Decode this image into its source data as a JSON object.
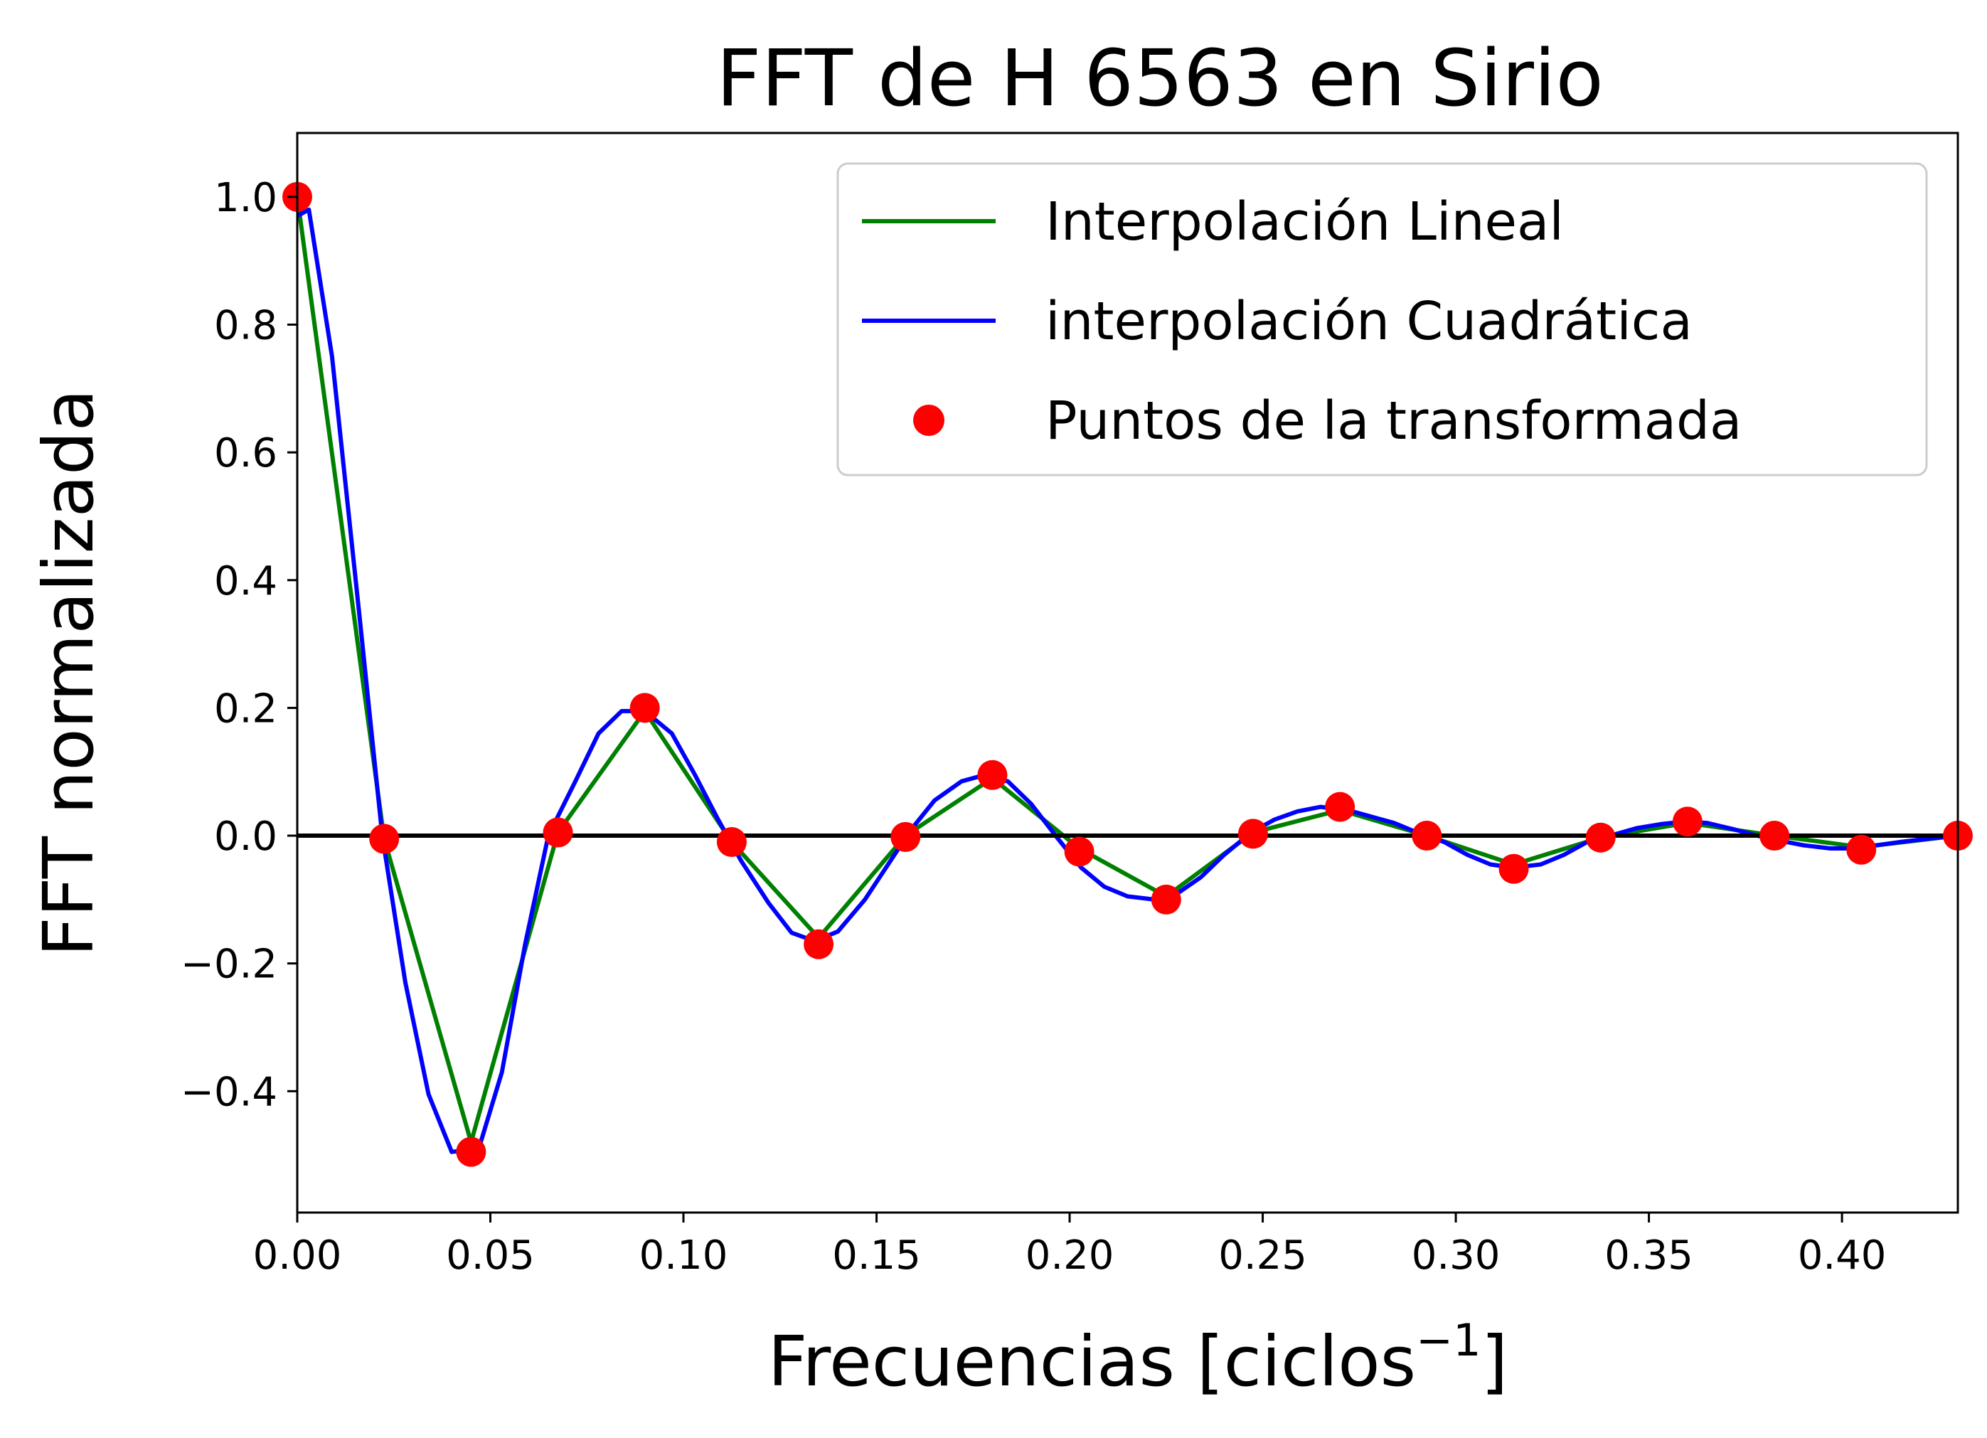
{
  "chart_data": {
    "type": "line",
    "title": "FFT de H 6563 en Sirio",
    "xlabel": "Frecuencias [ciclos",
    "xlabel_superscript": "−1",
    "xlabel_close": "]",
    "ylabel": "FFT normalizada",
    "xlim": [
      0.0,
      0.43
    ],
    "ylim": [
      -0.59,
      1.1
    ],
    "xticks": [
      0.0,
      0.05,
      0.1,
      0.15,
      0.2,
      0.25,
      0.3,
      0.35,
      0.4
    ],
    "xtick_labels": [
      "0.00",
      "0.05",
      "0.10",
      "0.15",
      "0.20",
      "0.25",
      "0.30",
      "0.35",
      "0.40"
    ],
    "yticks": [
      -0.4,
      -0.2,
      0.0,
      0.2,
      0.4,
      0.6,
      0.8,
      1.0
    ],
    "ytick_labels": [
      "−0.4",
      "−0.2",
      "0.0",
      "0.2",
      "0.4",
      "0.6",
      "0.8",
      "1.0"
    ],
    "grid": false,
    "legend_position": "top-right",
    "reference_line": {
      "y": 0.0,
      "color": "#000000"
    },
    "series": [
      {
        "name": "Interpolación Lineal",
        "kind": "line",
        "color": "#008000",
        "x": [
          0.0,
          0.0225,
          0.045,
          0.0675,
          0.09,
          0.1125,
          0.135,
          0.1575,
          0.18,
          0.2025,
          0.225,
          0.2475,
          0.27,
          0.2925,
          0.315,
          0.3375,
          0.36,
          0.3825,
          0.405,
          0.43
        ],
        "y": [
          1.0,
          -0.005,
          -0.48,
          0.005,
          0.195,
          -0.01,
          -0.16,
          0.0,
          0.09,
          -0.02,
          -0.095,
          0.005,
          0.04,
          0.0,
          -0.045,
          -0.003,
          0.02,
          0.0,
          -0.018,
          0.0
        ]
      },
      {
        "name": "interpolación Cuadrática",
        "kind": "line",
        "color": "#0000ff",
        "x": [
          0.0,
          0.003,
          0.009,
          0.016,
          0.022,
          0.028,
          0.034,
          0.04,
          0.047,
          0.053,
          0.059,
          0.065,
          0.072,
          0.078,
          0.084,
          0.09,
          0.097,
          0.103,
          0.109,
          0.115,
          0.122,
          0.128,
          0.134,
          0.14,
          0.147,
          0.153,
          0.159,
          0.165,
          0.172,
          0.178,
          0.184,
          0.19,
          0.197,
          0.203,
          0.209,
          0.215,
          0.222,
          0.228,
          0.234,
          0.24,
          0.247,
          0.253,
          0.259,
          0.265,
          0.272,
          0.278,
          0.284,
          0.29,
          0.297,
          0.303,
          0.309,
          0.315,
          0.322,
          0.328,
          0.334,
          0.34,
          0.347,
          0.353,
          0.359,
          0.365,
          0.372,
          0.378,
          0.384,
          0.39,
          0.397,
          0.403,
          0.409,
          0.415,
          0.422,
          0.43
        ],
        "y": [
          0.97,
          0.98,
          0.75,
          0.35,
          0.0,
          -0.23,
          -0.405,
          -0.495,
          -0.49,
          -0.37,
          -0.17,
          0.0,
          0.085,
          0.16,
          0.195,
          0.195,
          0.16,
          0.095,
          0.025,
          -0.04,
          -0.105,
          -0.152,
          -0.165,
          -0.15,
          -0.1,
          -0.045,
          0.01,
          0.055,
          0.085,
          0.095,
          0.085,
          0.05,
          -0.005,
          -0.05,
          -0.08,
          -0.095,
          -0.1,
          -0.09,
          -0.065,
          -0.03,
          0.005,
          0.025,
          0.038,
          0.045,
          0.04,
          0.03,
          0.02,
          0.005,
          -0.01,
          -0.03,
          -0.045,
          -0.05,
          -0.045,
          -0.03,
          -0.01,
          0.0,
          0.012,
          0.018,
          0.022,
          0.02,
          0.01,
          0.0,
          -0.008,
          -0.015,
          -0.02,
          -0.02,
          -0.015,
          -0.01,
          -0.005,
          0.0
        ]
      },
      {
        "name": "Puntos de la transformada",
        "kind": "scatter",
        "color": "#ff0000",
        "x": [
          0.0,
          0.0225,
          0.045,
          0.0675,
          0.09,
          0.1125,
          0.135,
          0.1575,
          0.18,
          0.2025,
          0.225,
          0.2475,
          0.27,
          0.2925,
          0.315,
          0.3375,
          0.36,
          0.3825,
          0.405,
          0.43
        ],
        "y": [
          1.0,
          -0.005,
          -0.495,
          0.005,
          0.2,
          -0.01,
          -0.17,
          -0.002,
          0.095,
          -0.025,
          -0.1,
          0.003,
          0.045,
          0.0,
          -0.052,
          -0.003,
          0.022,
          0.0,
          -0.022,
          0.0
        ]
      }
    ]
  }
}
